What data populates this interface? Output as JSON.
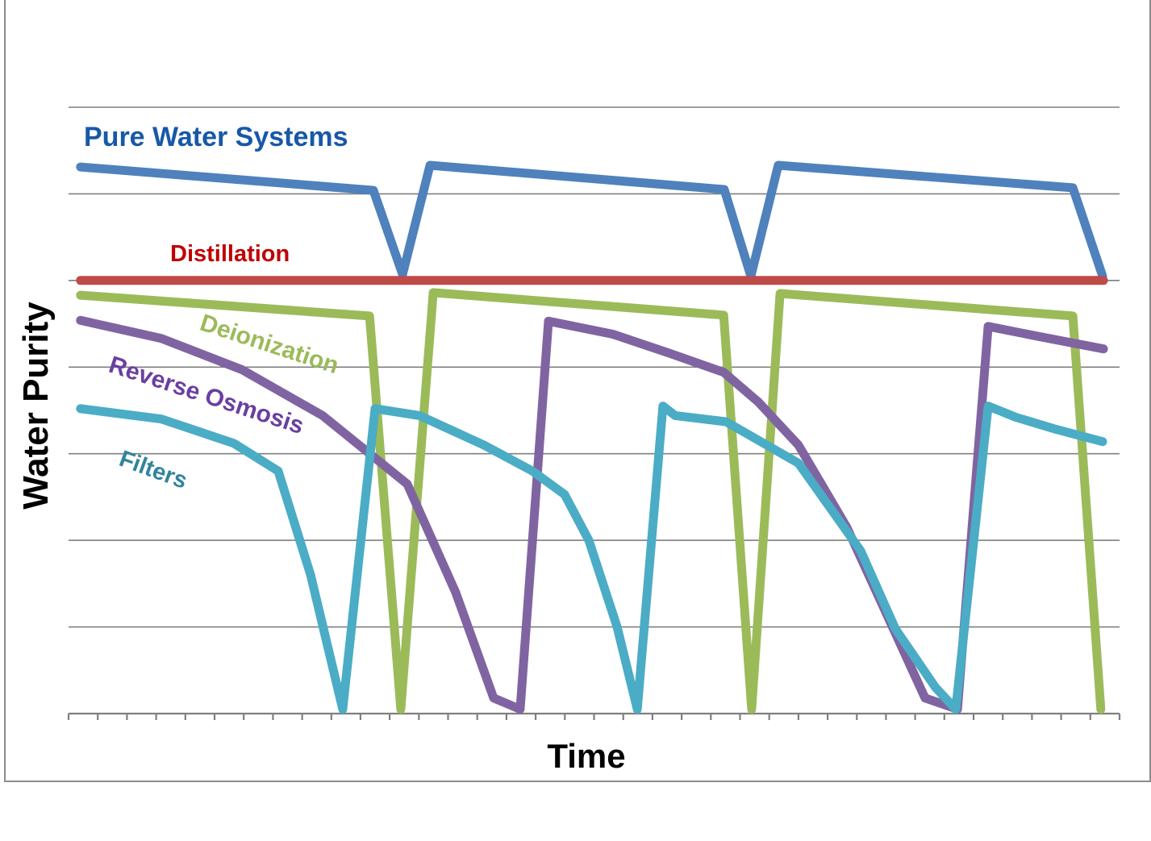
{
  "chart_data": {
    "type": "line",
    "title": "",
    "xlabel": "Time",
    "ylabel": "Water Purity",
    "background": "#FFFFFF",
    "legend": "none - series are labeled with inline colored text annotations",
    "grid": {
      "horizontal_gridlines_visible": true,
      "vertical_gridlines_visible": false,
      "gridline_color": "#7F7F7F"
    },
    "x_axis": {
      "title": "Time",
      "tick_count": 37,
      "tick_labels_visible": false,
      "range_units": [
        0,
        36
      ]
    },
    "y_axis": {
      "title": "Water Purity",
      "tick_labels_visible": false,
      "gridlines": [
        1,
        2,
        3,
        4,
        5,
        6,
        7
      ],
      "range": [
        0,
        7.5
      ],
      "note": "unlabeled relative purity scale; 0 = x-axis baseline, 7 = top gridline"
    },
    "series": [
      {
        "key": "pure-water-systems",
        "name": "Pure Water Systems",
        "line_color": "#4F81BD",
        "label_color": "#1758A8",
        "points": [
          [
            0.41,
            6.31
          ],
          [
            10.44,
            6.04
          ],
          [
            11.44,
            5.07
          ],
          [
            12.38,
            6.33
          ],
          [
            22.46,
            6.05
          ],
          [
            23.37,
            5.05
          ],
          [
            24.31,
            6.33
          ],
          [
            34.4,
            6.07
          ],
          [
            35.42,
            5.05
          ]
        ]
      },
      {
        "key": "distillation",
        "name": "Distillation",
        "line_color": "#BE4B48",
        "label_color": "#C00000",
        "points": [
          [
            0.41,
            5.0
          ],
          [
            35.45,
            5.0
          ]
        ]
      },
      {
        "key": "deionization",
        "name": "Deionization",
        "line_color": "#9BBB59",
        "label_color": "#9BBB59",
        "points": [
          [
            0.41,
            4.83
          ],
          [
            10.31,
            4.59
          ],
          [
            11.38,
            0.05
          ],
          [
            12.49,
            4.86
          ],
          [
            22.44,
            4.6
          ],
          [
            23.4,
            0.05
          ],
          [
            24.37,
            4.85
          ],
          [
            34.4,
            4.59
          ],
          [
            35.36,
            0.05
          ]
        ]
      },
      {
        "key": "reverse-osmosis",
        "name": "Reverse Osmosis",
        "line_color": "#8064A2",
        "label_color": "#6B3FA0",
        "points": [
          [
            0.41,
            4.54
          ],
          [
            3.18,
            4.33
          ],
          [
            5.94,
            3.97
          ],
          [
            8.7,
            3.44
          ],
          [
            11.6,
            2.65
          ],
          [
            13.26,
            1.4
          ],
          [
            14.56,
            0.18
          ],
          [
            15.47,
            0.05
          ],
          [
            16.44,
            4.53
          ],
          [
            18.65,
            4.38
          ],
          [
            20.58,
            4.16
          ],
          [
            22.44,
            3.94
          ],
          [
            23.62,
            3.6
          ],
          [
            25.0,
            3.1
          ],
          [
            26.66,
            2.15
          ],
          [
            29.34,
            0.18
          ],
          [
            30.45,
            0.05
          ],
          [
            31.5,
            4.47
          ],
          [
            33.29,
            4.35
          ],
          [
            35.45,
            4.21
          ]
        ]
      },
      {
        "key": "filters",
        "name": "Filters",
        "line_color": "#4BACC6",
        "label_color": "#31849B",
        "points": [
          [
            0.41,
            3.52
          ],
          [
            3.18,
            3.4
          ],
          [
            5.66,
            3.12
          ],
          [
            7.18,
            2.8
          ],
          [
            8.29,
            1.6
          ],
          [
            9.39,
            0.05
          ],
          [
            10.5,
            3.52
          ],
          [
            12.02,
            3.44
          ],
          [
            14.23,
            3.1
          ],
          [
            15.89,
            2.8
          ],
          [
            16.99,
            2.53
          ],
          [
            17.82,
            2.0
          ],
          [
            18.79,
            1.0
          ],
          [
            19.48,
            0.05
          ],
          [
            20.36,
            3.55
          ],
          [
            20.78,
            3.44
          ],
          [
            22.52,
            3.37
          ],
          [
            25.0,
            2.89
          ],
          [
            27.13,
            1.88
          ],
          [
            28.32,
            0.98
          ],
          [
            29.7,
            0.3
          ],
          [
            30.39,
            0.05
          ],
          [
            31.5,
            3.55
          ],
          [
            32.46,
            3.42
          ],
          [
            33.84,
            3.28
          ],
          [
            35.42,
            3.14
          ]
        ]
      }
    ]
  }
}
